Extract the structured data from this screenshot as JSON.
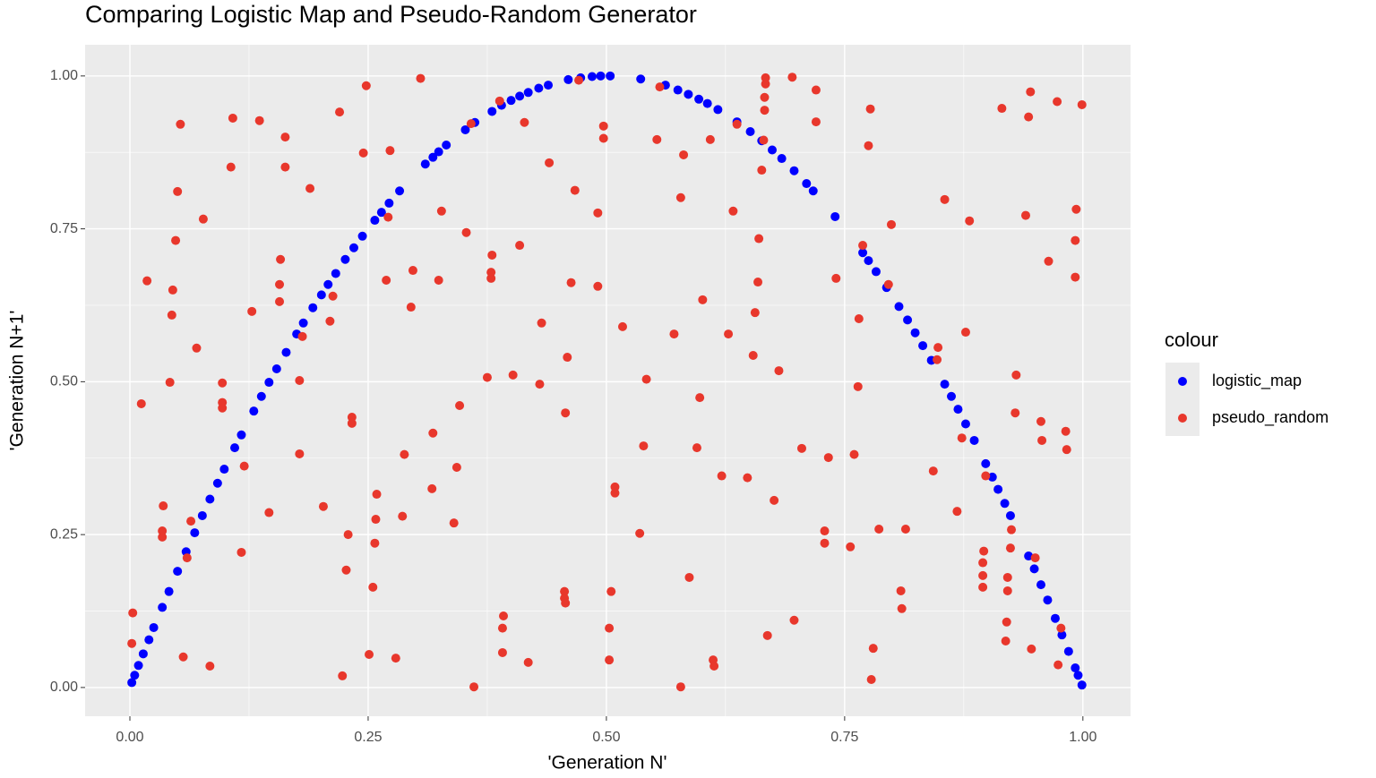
{
  "chart_data": {
    "type": "scatter",
    "title": "Comparing Logistic Map and Pseudo-Random Generator",
    "x_label": "'Generation N'",
    "y_label": "'Generation N+1'",
    "legend_title": "colour",
    "legend": "right",
    "grid": true,
    "xlim": [
      -0.047,
      1.05
    ],
    "ylim": [
      -0.047,
      1.051
    ],
    "xticks": [
      {
        "value": 0,
        "label": "0.00"
      },
      {
        "value": 0.25,
        "label": "0.25"
      },
      {
        "value": 0.5,
        "label": "0.50"
      },
      {
        "value": 0.75,
        "label": "0.75"
      },
      {
        "value": 1,
        "label": "1.00"
      }
    ],
    "yticks": [
      {
        "value": 0,
        "label": "0.00"
      },
      {
        "value": 0.25,
        "label": "0.25"
      },
      {
        "value": 0.5,
        "label": "0.50"
      },
      {
        "value": 0.75,
        "label": "0.75"
      },
      {
        "value": 1,
        "label": "1.00"
      }
    ],
    "series": [
      {
        "name": "logistic_map",
        "color": "#0000ff",
        "x": [
          0.002,
          0.005,
          0.009,
          0.014,
          0.02,
          0.025,
          0.034,
          0.041,
          0.05,
          0.059,
          0.068,
          0.076,
          0.084,
          0.092,
          0.099,
          0.11,
          0.117,
          0.13,
          0.138,
          0.146,
          0.154,
          0.164,
          0.175,
          0.182,
          0.192,
          0.201,
          0.208,
          0.216,
          0.226,
          0.235,
          0.244,
          0.257,
          0.264,
          0.272,
          0.283,
          0.31,
          0.318,
          0.324,
          0.332,
          0.352,
          0.362,
          0.38,
          0.39,
          0.4,
          0.409,
          0.418,
          0.429,
          0.439,
          0.46,
          0.473,
          0.485,
          0.494,
          0.504,
          0.536,
          0.562,
          0.575,
          0.586,
          0.597,
          0.606,
          0.617,
          0.637,
          0.651,
          0.663,
          0.674,
          0.684,
          0.697,
          0.71,
          0.717,
          0.74,
          0.769,
          0.775,
          0.783,
          0.794,
          0.807,
          0.816,
          0.824,
          0.832,
          0.841,
          0.855,
          0.862,
          0.869,
          0.877,
          0.886,
          0.898,
          0.905,
          0.911,
          0.918,
          0.924,
          0.943,
          0.949,
          0.956,
          0.963,
          0.971,
          0.978,
          0.985,
          0.992,
          0.995,
          0.999
        ],
        "values": [
          0.008,
          0.02,
          0.036,
          0.055,
          0.078,
          0.098,
          0.131,
          0.157,
          0.19,
          0.222,
          0.253,
          0.281,
          0.308,
          0.334,
          0.357,
          0.392,
          0.413,
          0.452,
          0.476,
          0.499,
          0.521,
          0.548,
          0.578,
          0.596,
          0.621,
          0.642,
          0.659,
          0.677,
          0.7,
          0.719,
          0.738,
          0.764,
          0.777,
          0.792,
          0.812,
          0.856,
          0.867,
          0.876,
          0.887,
          0.912,
          0.924,
          0.942,
          0.952,
          0.96,
          0.967,
          0.973,
          0.98,
          0.985,
          0.994,
          0.997,
          0.999,
          1.0,
          1.0,
          0.995,
          0.985,
          0.977,
          0.97,
          0.962,
          0.955,
          0.945,
          0.925,
          0.909,
          0.894,
          0.879,
          0.865,
          0.845,
          0.824,
          0.812,
          0.77,
          0.711,
          0.698,
          0.68,
          0.654,
          0.623,
          0.601,
          0.58,
          0.559,
          0.535,
          0.496,
          0.476,
          0.455,
          0.431,
          0.404,
          0.366,
          0.344,
          0.324,
          0.301,
          0.281,
          0.215,
          0.194,
          0.168,
          0.143,
          0.113,
          0.086,
          0.059,
          0.032,
          0.02,
          0.004
        ]
      },
      {
        "name": "pseudo_random",
        "color": "#e8372c",
        "x": [
          0.003,
          0.002,
          0.012,
          0.018,
          0.042,
          0.044,
          0.045,
          0.048,
          0.05,
          0.053,
          0.035,
          0.034,
          0.034,
          0.056,
          0.06,
          0.064,
          0.07,
          0.077,
          0.084,
          0.097,
          0.097,
          0.097,
          0.106,
          0.108,
          0.117,
          0.12,
          0.128,
          0.136,
          0.146,
          0.157,
          0.157,
          0.158,
          0.163,
          0.163,
          0.178,
          0.178,
          0.181,
          0.189,
          0.203,
          0.21,
          0.213,
          0.22,
          0.223,
          0.227,
          0.229,
          0.233,
          0.233,
          0.245,
          0.248,
          0.251,
          0.255,
          0.257,
          0.258,
          0.259,
          0.269,
          0.271,
          0.273,
          0.279,
          0.286,
          0.288,
          0.295,
          0.297,
          0.305,
          0.317,
          0.318,
          0.324,
          0.327,
          0.34,
          0.343,
          0.346,
          0.353,
          0.358,
          0.361,
          0.375,
          0.379,
          0.379,
          0.38,
          0.388,
          0.391,
          0.392,
          0.391,
          0.402,
          0.409,
          0.414,
          0.418,
          0.43,
          0.432,
          0.44,
          0.456,
          0.456,
          0.457,
          0.457,
          0.459,
          0.463,
          0.467,
          0.471,
          0.491,
          0.491,
          0.497,
          0.497,
          0.503,
          0.503,
          0.505,
          0.509,
          0.509,
          0.517,
          0.535,
          0.539,
          0.542,
          0.553,
          0.556,
          0.571,
          0.578,
          0.578,
          0.581,
          0.587,
          0.595,
          0.598,
          0.601,
          0.612,
          0.613,
          0.609,
          0.621,
          0.628,
          0.633,
          0.637,
          0.648,
          0.654,
          0.656,
          0.659,
          0.66,
          0.663,
          0.666,
          0.666,
          0.667,
          0.667,
          0.665,
          0.669,
          0.676,
          0.681,
          0.695,
          0.697,
          0.705,
          0.72,
          0.72,
          0.729,
          0.729,
          0.733,
          0.741,
          0.756,
          0.76,
          0.764,
          0.765,
          0.769,
          0.775,
          0.777,
          0.778,
          0.78,
          0.786,
          0.796,
          0.799,
          0.809,
          0.81,
          0.814,
          0.843,
          0.847,
          0.848,
          0.855,
          0.868,
          0.873,
          0.877,
          0.881,
          0.898,
          0.896,
          0.895,
          0.895,
          0.895,
          0.915,
          0.919,
          0.92,
          0.921,
          0.921,
          0.924,
          0.925,
          0.929,
          0.93,
          0.943,
          0.945,
          0.94,
          0.946,
          0.95,
          0.956,
          0.957,
          0.964,
          0.973,
          0.974,
          0.977,
          0.982,
          0.983,
          0.992,
          0.992,
          0.993,
          0.999
        ],
        "values": [
          0.122,
          0.072,
          0.464,
          0.665,
          0.499,
          0.609,
          0.65,
          0.731,
          0.811,
          0.921,
          0.297,
          0.256,
          0.246,
          0.05,
          0.212,
          0.272,
          0.555,
          0.766,
          0.035,
          0.498,
          0.466,
          0.457,
          0.851,
          0.931,
          0.221,
          0.362,
          0.615,
          0.927,
          0.286,
          0.631,
          0.659,
          0.7,
          0.851,
          0.9,
          0.502,
          0.382,
          0.574,
          0.816,
          0.296,
          0.599,
          0.64,
          0.941,
          0.019,
          0.192,
          0.25,
          0.442,
          0.432,
          0.874,
          0.984,
          0.054,
          0.164,
          0.236,
          0.275,
          0.316,
          0.666,
          0.769,
          0.878,
          0.048,
          0.28,
          0.381,
          0.622,
          0.682,
          0.996,
          0.325,
          0.416,
          0.666,
          0.779,
          0.269,
          0.36,
          0.461,
          0.744,
          0.922,
          0.001,
          0.507,
          0.669,
          0.679,
          0.707,
          0.959,
          0.057,
          0.117,
          0.097,
          0.511,
          0.723,
          0.924,
          0.041,
          0.496,
          0.596,
          0.858,
          0.157,
          0.146,
          0.138,
          0.449,
          0.54,
          0.662,
          0.813,
          0.993,
          0.776,
          0.656,
          0.918,
          0.898,
          0.045,
          0.097,
          0.157,
          0.328,
          0.318,
          0.59,
          0.252,
          0.395,
          0.504,
          0.896,
          0.982,
          0.578,
          0.001,
          0.801,
          0.871,
          0.18,
          0.392,
          0.474,
          0.634,
          0.045,
          0.035,
          0.896,
          0.346,
          0.578,
          0.779,
          0.921,
          0.343,
          0.543,
          0.613,
          0.663,
          0.734,
          0.846,
          0.944,
          0.965,
          0.987,
          0.997,
          0.895,
          0.085,
          0.306,
          0.518,
          0.998,
          0.11,
          0.391,
          0.977,
          0.925,
          0.256,
          0.236,
          0.376,
          0.669,
          0.23,
          0.381,
          0.492,
          0.603,
          0.723,
          0.886,
          0.946,
          0.013,
          0.064,
          0.259,
          0.659,
          0.757,
          0.158,
          0.129,
          0.259,
          0.354,
          0.536,
          0.556,
          0.798,
          0.288,
          0.408,
          0.581,
          0.763,
          0.346,
          0.223,
          0.204,
          0.183,
          0.164,
          0.947,
          0.076,
          0.107,
          0.18,
          0.158,
          0.228,
          0.258,
          0.449,
          0.511,
          0.933,
          0.974,
          0.772,
          0.063,
          0.212,
          0.435,
          0.404,
          0.697,
          0.958,
          0.037,
          0.097,
          0.419,
          0.389,
          0.671,
          0.731,
          0.782,
          0.953
        ]
      }
    ]
  }
}
